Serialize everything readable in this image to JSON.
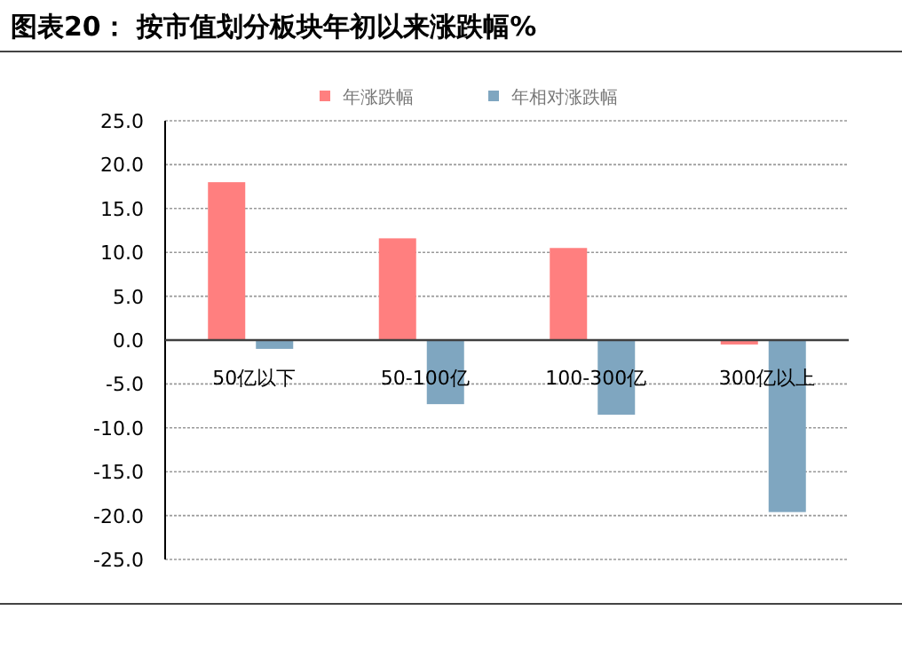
{
  "chart_data": {
    "type": "bar",
    "title": "图表20：  按市值划分板块年初以来涨跌幅%",
    "categories": [
      "50亿以下",
      "50-100亿",
      "100-300亿",
      "300亿以上"
    ],
    "series": [
      {
        "name": "年涨跌幅",
        "color": "#ff7f7f",
        "values": [
          18.0,
          11.6,
          10.5,
          -0.5
        ]
      },
      {
        "name": "年相对涨跌幅",
        "color": "#7fa6c0",
        "values": [
          -1.0,
          -7.3,
          -8.5,
          -19.6
        ]
      }
    ],
    "ylim": [
      -25,
      25
    ],
    "yticks": [
      {
        "value": -25,
        "label": "-25.0"
      },
      {
        "value": -20,
        "label": "-20.0"
      },
      {
        "value": -15,
        "label": "-15.0"
      },
      {
        "value": -10,
        "label": "-10.0"
      },
      {
        "value": -5,
        "label": "-5.0"
      },
      {
        "value": 0,
        "label": "0.0"
      },
      {
        "value": 5,
        "label": "5.0"
      },
      {
        "value": 10,
        "label": "10.0"
      },
      {
        "value": 15,
        "label": "15.0"
      },
      {
        "value": 20,
        "label": "20.0"
      },
      {
        "value": 25,
        "label": "25.0"
      }
    ],
    "grid": "y",
    "legend": "top"
  }
}
